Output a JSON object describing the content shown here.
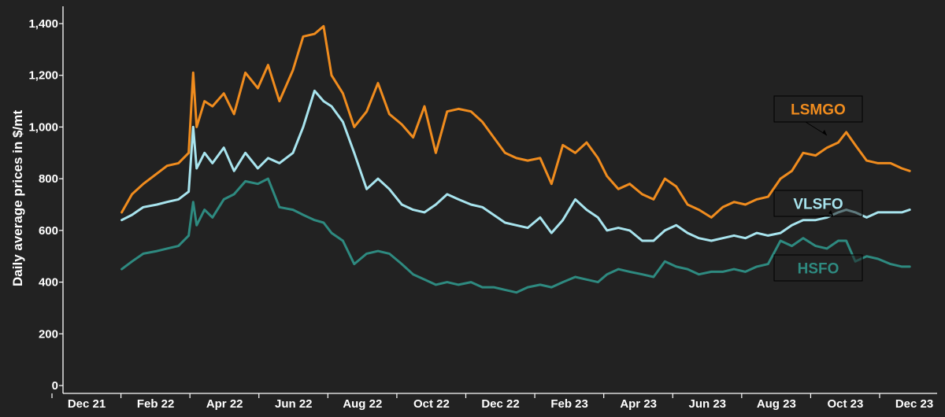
{
  "chart_data": {
    "type": "line",
    "ylabel": "Daily average prices in $/mt",
    "ylim": [
      0,
      1400
    ],
    "yticks": [
      0,
      200,
      400,
      600,
      800,
      1000,
      1200,
      1400
    ],
    "ytick_labels": [
      "0",
      "200",
      "400",
      "600",
      "800",
      "1,000",
      "1,200",
      "1,400"
    ],
    "xticks": [
      "Dec 21",
      "Feb 22",
      "Apr 22",
      "Jun 22",
      "Aug 22",
      "Oct 22",
      "Dec 22",
      "Feb 23",
      "Apr 23",
      "Jun 23",
      "Aug 23",
      "Oct 23",
      "Dec 23"
    ],
    "grid": false,
    "colors": {
      "background": "#222222",
      "axis": "#ffffff",
      "LSMGO": "#f08c1e",
      "VLSFO": "#a8e4ee",
      "HSFO": "#2e8a80"
    },
    "series": [
      {
        "name": "LSMGO",
        "x": [
          "2022-01-01",
          "2022-01-10",
          "2022-01-20",
          "2022-02-01",
          "2022-02-10",
          "2022-02-20",
          "2022-03-01",
          "2022-03-05",
          "2022-03-08",
          "2022-03-15",
          "2022-03-22",
          "2022-04-01",
          "2022-04-10",
          "2022-04-20",
          "2022-05-01",
          "2022-05-10",
          "2022-05-20",
          "2022-06-01",
          "2022-06-10",
          "2022-06-20",
          "2022-06-28",
          "2022-07-05",
          "2022-07-15",
          "2022-07-25",
          "2022-08-05",
          "2022-08-15",
          "2022-08-25",
          "2022-09-05",
          "2022-09-15",
          "2022-09-25",
          "2022-10-05",
          "2022-10-15",
          "2022-10-25",
          "2022-11-05",
          "2022-11-15",
          "2022-11-25",
          "2022-12-05",
          "2022-12-15",
          "2022-12-25",
          "2023-01-05",
          "2023-01-15",
          "2023-01-25",
          "2023-02-05",
          "2023-02-15",
          "2023-02-25",
          "2023-03-05",
          "2023-03-15",
          "2023-03-25",
          "2023-04-05",
          "2023-04-15",
          "2023-04-25",
          "2023-05-05",
          "2023-05-15",
          "2023-05-25",
          "2023-06-05",
          "2023-06-15",
          "2023-06-25",
          "2023-07-05",
          "2023-07-15",
          "2023-07-25",
          "2023-08-05",
          "2023-08-15",
          "2023-08-25",
          "2023-09-05",
          "2023-09-15",
          "2023-09-25",
          "2023-10-02",
          "2023-10-10",
          "2023-10-20",
          "2023-10-30",
          "2023-11-10",
          "2023-11-20",
          "2023-11-27"
        ],
        "values": [
          670,
          740,
          780,
          820,
          850,
          860,
          900,
          1210,
          1000,
          1100,
          1080,
          1130,
          1050,
          1210,
          1150,
          1240,
          1100,
          1220,
          1350,
          1360,
          1390,
          1200,
          1130,
          1000,
          1060,
          1170,
          1050,
          1010,
          960,
          1080,
          900,
          1060,
          1070,
          1060,
          1020,
          960,
          900,
          880,
          870,
          880,
          780,
          930,
          900,
          940,
          880,
          810,
          760,
          780,
          740,
          720,
          800,
          770,
          700,
          680,
          650,
          690,
          710,
          700,
          720,
          730,
          800,
          830,
          900,
          890,
          920,
          940,
          980,
          930,
          870,
          860,
          860,
          840,
          830
        ]
      },
      {
        "name": "VLSFO",
        "x": [
          "2022-01-01",
          "2022-01-10",
          "2022-01-20",
          "2022-02-01",
          "2022-02-10",
          "2022-02-20",
          "2022-03-01",
          "2022-03-05",
          "2022-03-08",
          "2022-03-15",
          "2022-03-22",
          "2022-04-01",
          "2022-04-10",
          "2022-04-20",
          "2022-05-01",
          "2022-05-10",
          "2022-05-20",
          "2022-06-01",
          "2022-06-10",
          "2022-06-20",
          "2022-06-28",
          "2022-07-05",
          "2022-07-15",
          "2022-07-25",
          "2022-08-05",
          "2022-08-15",
          "2022-08-25",
          "2022-09-05",
          "2022-09-15",
          "2022-09-25",
          "2022-10-05",
          "2022-10-15",
          "2022-10-25",
          "2022-11-05",
          "2022-11-15",
          "2022-11-25",
          "2022-12-05",
          "2022-12-15",
          "2022-12-25",
          "2023-01-05",
          "2023-01-15",
          "2023-01-25",
          "2023-02-05",
          "2023-02-15",
          "2023-02-25",
          "2023-03-05",
          "2023-03-15",
          "2023-03-25",
          "2023-04-05",
          "2023-04-15",
          "2023-04-25",
          "2023-05-05",
          "2023-05-15",
          "2023-05-25",
          "2023-06-05",
          "2023-06-15",
          "2023-06-25",
          "2023-07-05",
          "2023-07-15",
          "2023-07-25",
          "2023-08-05",
          "2023-08-15",
          "2023-08-25",
          "2023-09-05",
          "2023-09-15",
          "2023-09-25",
          "2023-10-02",
          "2023-10-10",
          "2023-10-20",
          "2023-10-30",
          "2023-11-10",
          "2023-11-20",
          "2023-11-27"
        ],
        "values": [
          640,
          660,
          690,
          700,
          710,
          720,
          750,
          1000,
          840,
          900,
          860,
          920,
          830,
          900,
          840,
          880,
          860,
          900,
          1000,
          1140,
          1100,
          1080,
          1020,
          900,
          760,
          800,
          760,
          700,
          680,
          670,
          700,
          740,
          720,
          700,
          690,
          660,
          630,
          620,
          610,
          650,
          590,
          640,
          720,
          680,
          650,
          600,
          610,
          600,
          560,
          560,
          600,
          620,
          590,
          570,
          560,
          570,
          580,
          570,
          590,
          580,
          590,
          620,
          640,
          640,
          650,
          670,
          680,
          670,
          650,
          670,
          670,
          670,
          680
        ]
      },
      {
        "name": "HSFO",
        "x": [
          "2022-01-01",
          "2022-01-10",
          "2022-01-20",
          "2022-02-01",
          "2022-02-10",
          "2022-02-20",
          "2022-03-01",
          "2022-03-05",
          "2022-03-08",
          "2022-03-15",
          "2022-03-22",
          "2022-04-01",
          "2022-04-10",
          "2022-04-20",
          "2022-05-01",
          "2022-05-10",
          "2022-05-20",
          "2022-06-01",
          "2022-06-10",
          "2022-06-20",
          "2022-06-28",
          "2022-07-05",
          "2022-07-15",
          "2022-07-25",
          "2022-08-05",
          "2022-08-15",
          "2022-08-25",
          "2022-09-05",
          "2022-09-15",
          "2022-09-25",
          "2022-10-05",
          "2022-10-15",
          "2022-10-25",
          "2022-11-05",
          "2022-11-15",
          "2022-11-25",
          "2022-12-05",
          "2022-12-15",
          "2022-12-25",
          "2023-01-05",
          "2023-01-15",
          "2023-01-25",
          "2023-02-05",
          "2023-02-15",
          "2023-02-25",
          "2023-03-05",
          "2023-03-15",
          "2023-03-25",
          "2023-04-05",
          "2023-04-15",
          "2023-04-25",
          "2023-05-05",
          "2023-05-15",
          "2023-05-25",
          "2023-06-05",
          "2023-06-15",
          "2023-06-25",
          "2023-07-05",
          "2023-07-15",
          "2023-07-25",
          "2023-08-05",
          "2023-08-15",
          "2023-08-25",
          "2023-09-05",
          "2023-09-15",
          "2023-09-25",
          "2023-10-02",
          "2023-10-10",
          "2023-10-20",
          "2023-10-30",
          "2023-11-10",
          "2023-11-20",
          "2023-11-27"
        ],
        "values": [
          450,
          480,
          510,
          520,
          530,
          540,
          580,
          710,
          620,
          680,
          650,
          720,
          740,
          790,
          780,
          800,
          690,
          680,
          660,
          640,
          630,
          590,
          560,
          470,
          510,
          520,
          510,
          470,
          430,
          410,
          390,
          400,
          390,
          400,
          380,
          380,
          370,
          360,
          380,
          390,
          380,
          400,
          420,
          410,
          400,
          430,
          450,
          440,
          430,
          420,
          480,
          460,
          450,
          430,
          440,
          440,
          450,
          440,
          460,
          470,
          560,
          540,
          570,
          540,
          530,
          560,
          560,
          480,
          500,
          490,
          470,
          460,
          460
        ]
      }
    ],
    "labels": [
      {
        "text": "LSMGO",
        "series": "LSMGO"
      },
      {
        "text": "VLSFO",
        "series": "VLSFO"
      },
      {
        "text": "HSFO",
        "series": "HSFO"
      }
    ]
  }
}
